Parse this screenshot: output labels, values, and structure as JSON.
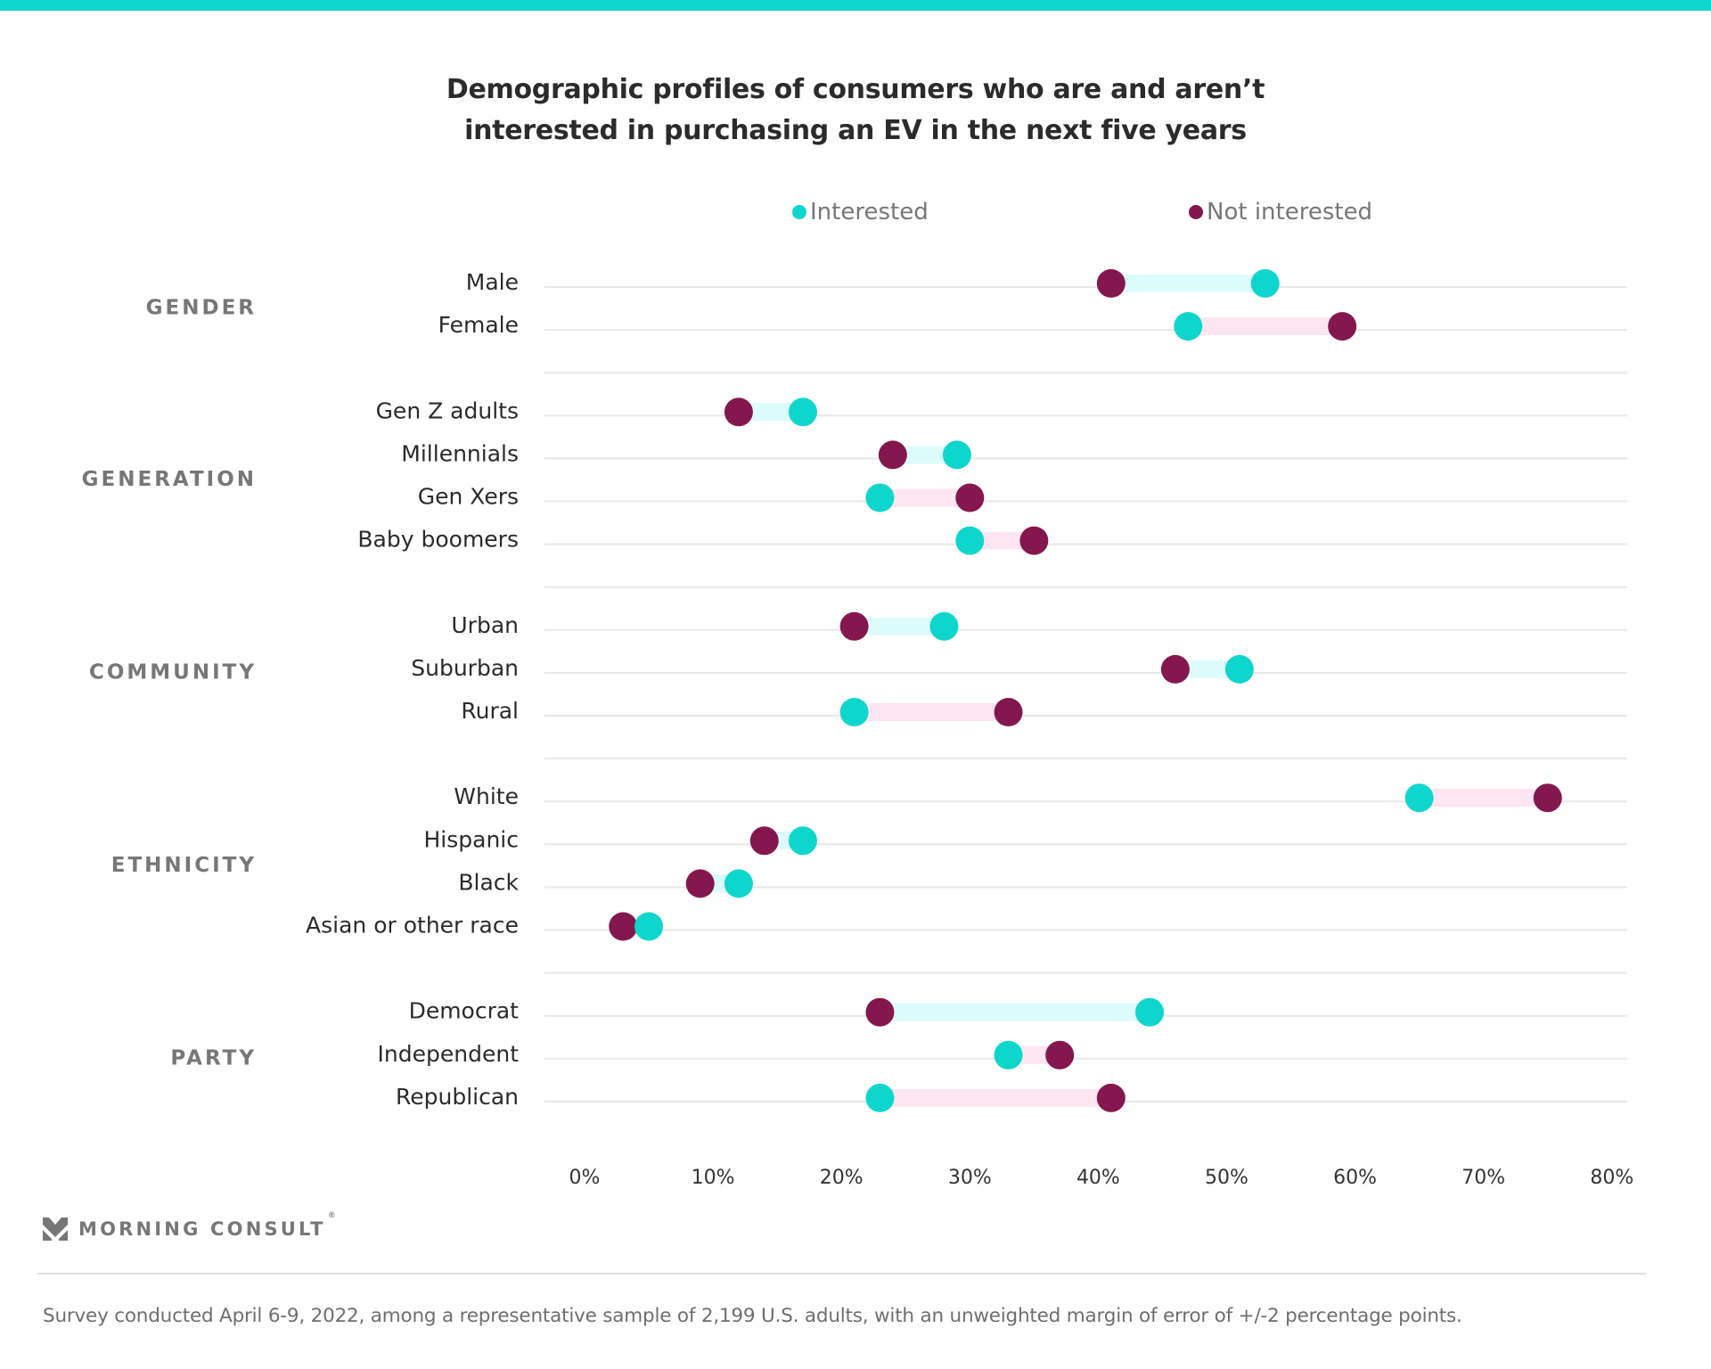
{
  "colors": {
    "accent_bar": "#0fd6cc",
    "interested": "#0fd6cc",
    "not_interested": "#84184e",
    "bar_interested_higher": "#dcfcfb",
    "bar_not_interested_higher": "#fde6f2",
    "gridline": "#e8e8e8"
  },
  "header": {
    "title_line1": "Demographic profiles of consumers who are and aren’t",
    "title_line2": "interested in purchasing an EV in the next five years"
  },
  "legend": {
    "interested_label": "Interested",
    "not_interested_label": "Not interested"
  },
  "chart_data": {
    "type": "dumbbell",
    "title": "Demographic profiles of consumers who are and aren’t interested in purchasing an EV in the next five years",
    "xlabel": "",
    "ylabel": "",
    "xlim": [
      0,
      80
    ],
    "x_ticks": [
      0,
      10,
      20,
      30,
      40,
      50,
      60,
      70,
      80
    ],
    "x_tick_labels": [
      "0%",
      "10%",
      "20%",
      "30%",
      "40%",
      "50%",
      "60%",
      "70%",
      "80%"
    ],
    "unit": "%",
    "grid": true,
    "legend_position": "top",
    "series": [
      {
        "name": "Interested",
        "key": "interested"
      },
      {
        "name": "Not interested",
        "key": "not_interested"
      }
    ],
    "groups": [
      {
        "name": "GENDER",
        "rows": [
          {
            "label": "Male",
            "interested": 53,
            "not_interested": 41
          },
          {
            "label": "Female",
            "interested": 47,
            "not_interested": 59
          }
        ]
      },
      {
        "name": "GENERATION",
        "rows": [
          {
            "label": "Gen Z adults",
            "interested": 17,
            "not_interested": 12
          },
          {
            "label": "Millennials",
            "interested": 29,
            "not_interested": 24
          },
          {
            "label": "Gen Xers",
            "interested": 23,
            "not_interested": 30
          },
          {
            "label": "Baby boomers",
            "interested": 30,
            "not_interested": 35
          }
        ]
      },
      {
        "name": "COMMUNITY",
        "rows": [
          {
            "label": "Urban",
            "interested": 28,
            "not_interested": 21
          },
          {
            "label": "Suburban",
            "interested": 51,
            "not_interested": 46
          },
          {
            "label": "Rural",
            "interested": 21,
            "not_interested": 33
          }
        ]
      },
      {
        "name": "ETHNICITY",
        "rows": [
          {
            "label": "White",
            "interested": 65,
            "not_interested": 75
          },
          {
            "label": "Hispanic",
            "interested": 17,
            "not_interested": 14
          },
          {
            "label": "Black",
            "interested": 12,
            "not_interested": 9
          },
          {
            "label": "Asian or other race",
            "interested": 5,
            "not_interested": 3
          }
        ]
      },
      {
        "name": "PARTY",
        "rows": [
          {
            "label": "Democrat",
            "interested": 44,
            "not_interested": 23
          },
          {
            "label": "Independent",
            "interested": 33,
            "not_interested": 37
          },
          {
            "label": "Republican",
            "interested": 23,
            "not_interested": 41
          }
        ]
      }
    ]
  },
  "footer": {
    "brand": "MORNING CONSULT",
    "brand_mark": "®",
    "logo_icon": "morning-consult-chevron-icon",
    "note": "Survey conducted April 6-9, 2022, among a representative sample of 2,199 U.S. adults, with an unweighted margin of error of +/-2 percentage points."
  }
}
